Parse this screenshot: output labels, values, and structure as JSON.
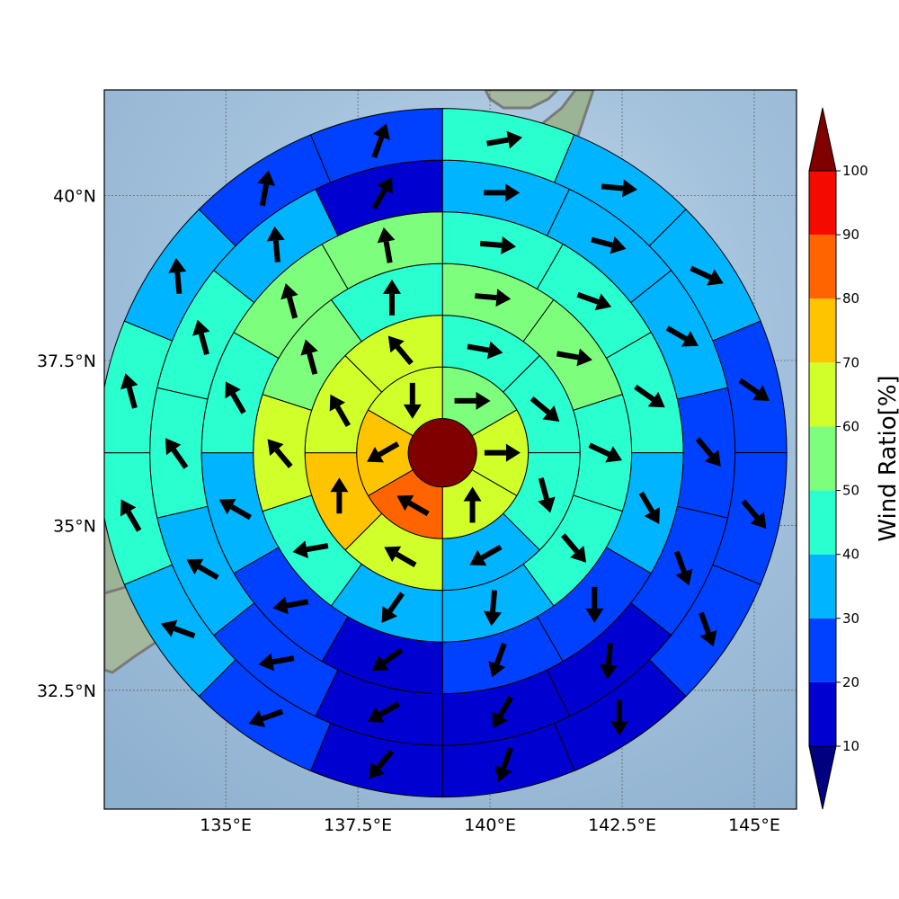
{
  "map": {
    "lon_range": [
      132.7,
      145.8
    ],
    "lat_range": [
      30.7,
      41.6
    ],
    "center": {
      "lon": 139.1,
      "lat": 36.1
    },
    "lon_ticks": [
      {
        "value": 135.0,
        "label": "135°E"
      },
      {
        "value": 137.5,
        "label": "137.5°E"
      },
      {
        "value": 140.0,
        "label": "140°E"
      },
      {
        "value": 142.5,
        "label": "142.5°E"
      },
      {
        "value": 145.0,
        "label": "145°E"
      }
    ],
    "lat_ticks": [
      {
        "value": 40.0,
        "label": "40°N"
      },
      {
        "value": 37.5,
        "label": "37.5°N"
      },
      {
        "value": 35.0,
        "label": "35°N"
      },
      {
        "value": 32.5,
        "label": "32.5°N"
      }
    ],
    "grid": true,
    "ocean_color": "#9dbcd8",
    "land_color": "#9fb59a",
    "coastline_color": "#7a7a7a"
  },
  "colorbar": {
    "title": "Wind Ratio[%]",
    "levels": [
      10,
      20,
      30,
      40,
      50,
      60,
      70,
      80,
      90,
      100
    ],
    "tick_labels": [
      "10",
      "20",
      "30",
      "40",
      "50",
      "60",
      "70",
      "80",
      "90",
      "100"
    ],
    "colors": [
      "#0000d0",
      "#0040ff",
      "#00b4ff",
      "#2affd0",
      "#7dff7d",
      "#d0ff2a",
      "#ffc400",
      "#ff6400",
      "#f50a00"
    ],
    "under_color": "#000080",
    "over_color": "#800000",
    "extend": "both"
  },
  "chart_data": {
    "type": "polar-sector-map",
    "description_units": "wind ratio in percent; arrows show direction",
    "center_value_color": "#800000",
    "rings": [
      {
        "ring": 1,
        "sectors": 6,
        "start_deg": 90,
        "values": [
          55,
          60,
          60,
          80,
          75,
          60
        ],
        "arrow_dirs": [
          90,
          90,
          0,
          300,
          240,
          180
        ]
      },
      {
        "ring": 2,
        "sectors": 8,
        "start_deg": 90,
        "values": [
          40,
          45,
          40,
          30,
          60,
          70,
          65,
          60
        ],
        "arrow_dirs": [
          100,
          130,
          165,
          240,
          300,
          0,
          330,
          320
        ]
      },
      {
        "ring": 3,
        "sectors": 10,
        "start_deg": 90,
        "values": [
          50,
          50,
          45,
          40,
          30,
          30,
          45,
          60,
          55,
          45
        ],
        "arrow_dirs": [
          95,
          100,
          115,
          140,
          185,
          215,
          260,
          320,
          345,
          0
        ]
      },
      {
        "ring": 4,
        "sectors": 12,
        "start_deg": 90,
        "values": [
          40,
          40,
          40,
          30,
          20,
          20,
          10,
          20,
          30,
          40,
          50,
          50
        ],
        "arrow_dirs": [
          95,
          110,
          125,
          150,
          180,
          200,
          235,
          260,
          300,
          330,
          345,
          350
        ]
      },
      {
        "ring": 5,
        "sectors": 14,
        "start_deg": 90,
        "values": [
          30,
          30,
          30,
          20,
          20,
          10,
          10,
          10,
          20,
          30,
          40,
          40,
          30,
          10
        ],
        "arrow_dirs": [
          90,
          105,
          120,
          140,
          160,
          185,
          210,
          240,
          260,
          300,
          325,
          345,
          355,
          30
        ]
      },
      {
        "ring": 6,
        "sectors": 16,
        "start_deg": 90,
        "values": [
          40,
          30,
          30,
          20,
          20,
          20,
          10,
          10,
          10,
          20,
          30,
          40,
          40,
          30,
          20,
          20
        ],
        "arrow_dirs": [
          80,
          95,
          115,
          125,
          140,
          160,
          180,
          200,
          220,
          250,
          290,
          330,
          345,
          355,
          10,
          20
        ]
      }
    ]
  }
}
